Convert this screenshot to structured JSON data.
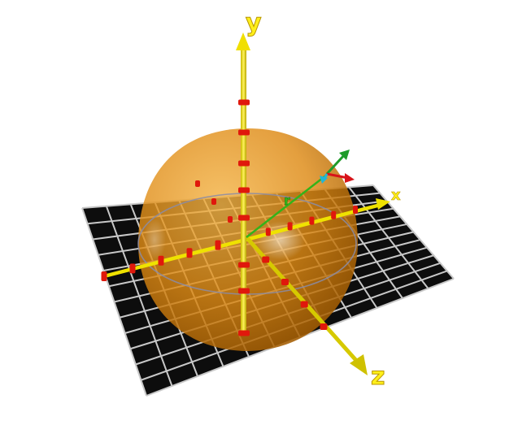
{
  "scene": {
    "colors": {
      "background": "#ffffff",
      "grid_floor": "#0d0d0d",
      "grid_lines": "#c8c8c8",
      "hemisphere": "#e88a0c",
      "axis": "#f2e600",
      "tick_marks": "#e0180c",
      "vector_r": "#33b31a",
      "frame_red": "#d8141a",
      "frame_green": "#1e9b2a",
      "frame_cyan": "#22b6d6"
    },
    "axes": {
      "y_label": "y",
      "x_label": "x",
      "z_label": "z"
    },
    "vector": {
      "label": "r"
    }
  }
}
